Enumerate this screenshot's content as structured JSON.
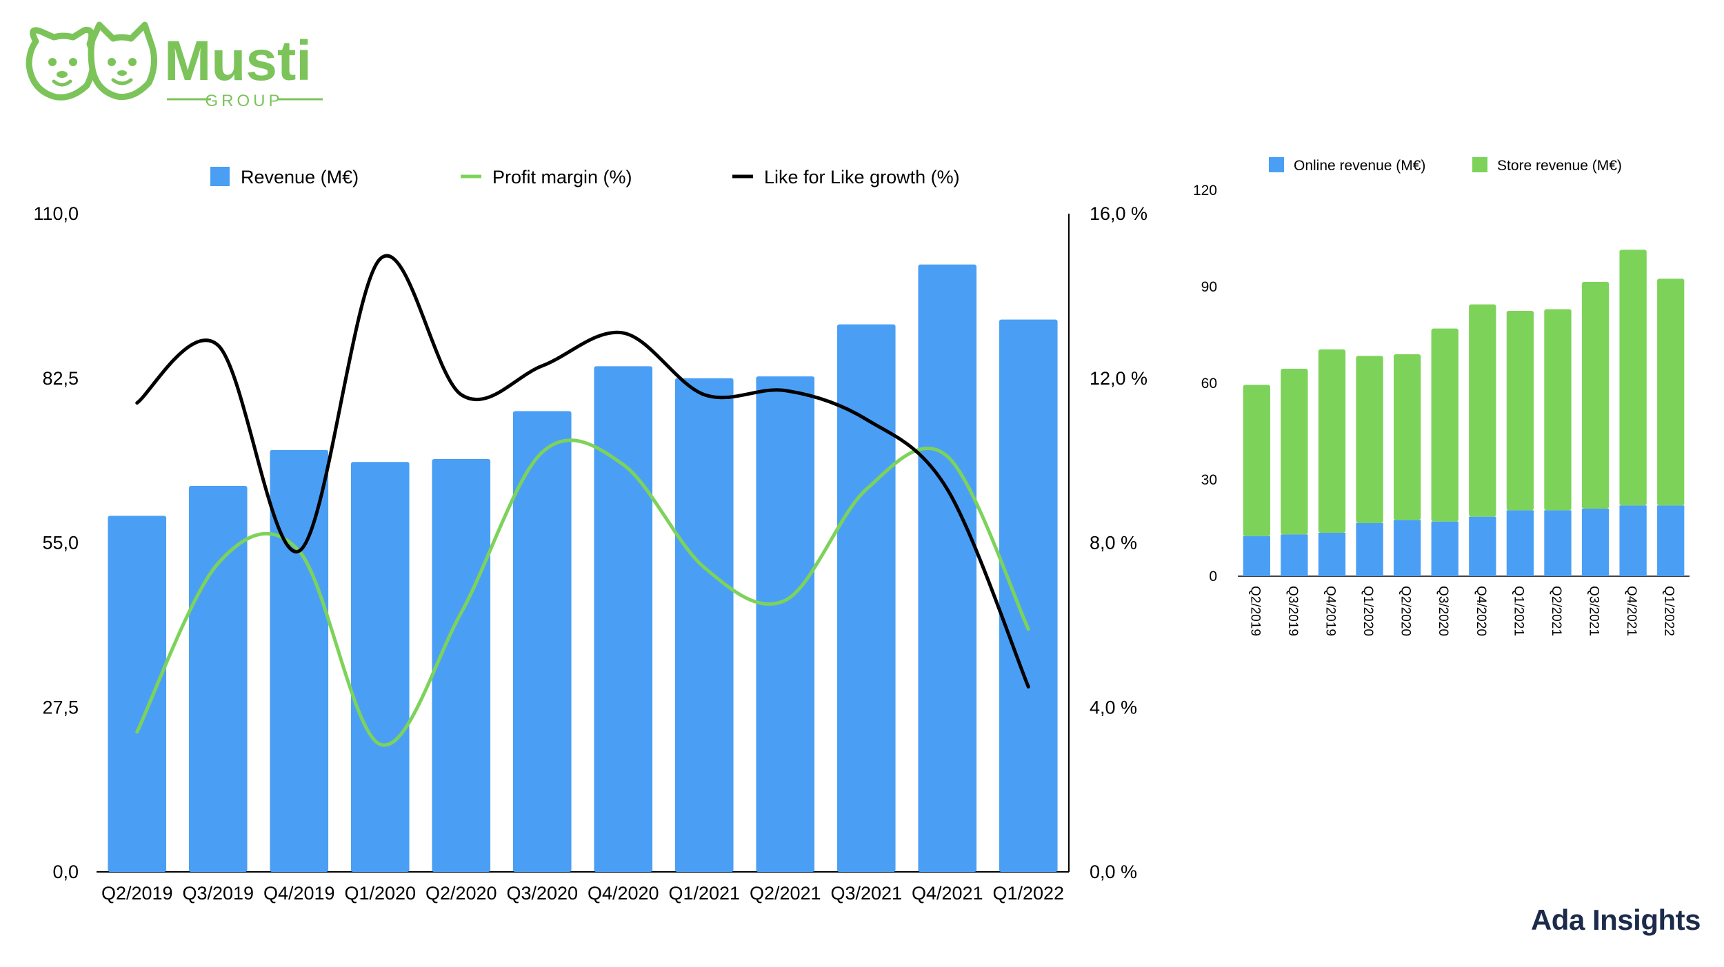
{
  "brand": {
    "logo_text": "Musti",
    "logo_subtext": "GROUP",
    "footer": "Ada Insights",
    "green": "#7cc45a"
  },
  "chart_data": [
    {
      "type": "bar",
      "categories": [
        "Q2/2019",
        "Q3/2019",
        "Q4/2019",
        "Q1/2020",
        "Q2/2020",
        "Q3/2020",
        "Q4/2020",
        "Q1/2021",
        "Q2/2021",
        "Q3/2021",
        "Q4/2021",
        "Q1/2022"
      ],
      "series": [
        {
          "name": "Revenue (M€)",
          "type": "bar",
          "axis": "left",
          "color": "#4a9ff5",
          "values": [
            59.5,
            64.5,
            70.5,
            68.5,
            69.0,
            77.0,
            84.5,
            82.5,
            82.8,
            91.5,
            101.5,
            92.3
          ]
        },
        {
          "name": "Profit margin (%)",
          "type": "line",
          "axis": "right",
          "color": "#7dd35a",
          "values": [
            3.4,
            7.5,
            7.8,
            3.1,
            6.3,
            10.2,
            9.9,
            7.4,
            6.6,
            9.3,
            10.1,
            5.9
          ]
        },
        {
          "name": "Like for Like growth (%)",
          "type": "line",
          "axis": "right",
          "color": "#000000",
          "values": [
            11.4,
            12.8,
            7.8,
            14.9,
            11.6,
            12.3,
            13.1,
            11.6,
            11.7,
            11.0,
            9.3,
            4.5
          ]
        }
      ],
      "left_axis": {
        "ticks": [
          "0,0",
          "27,5",
          "55,0",
          "82,5",
          "110,0"
        ],
        "ylim": [
          0,
          110
        ]
      },
      "right_axis": {
        "ticks": [
          "0,0 %",
          "4,0 %",
          "8,0 %",
          "12,0 %",
          "16,0 %"
        ],
        "ylim": [
          0,
          16
        ]
      },
      "legend": "top",
      "grid": false
    },
    {
      "type": "bar",
      "stacked": true,
      "categories": [
        "Q2/2019",
        "Q3/2019",
        "Q4/2019",
        "Q1/2020",
        "Q2/2020",
        "Q3/2020",
        "Q4/2020",
        "Q1/2021",
        "Q2/2021",
        "Q3/2021",
        "Q4/2021",
        "Q1/2022"
      ],
      "series": [
        {
          "name": "Online revenue (M€)",
          "color": "#4a9ff5",
          "values": [
            12.5,
            13.0,
            13.5,
            16.5,
            17.5,
            17.0,
            18.5,
            20.5,
            20.5,
            21.0,
            22.0,
            22.0
          ]
        },
        {
          "name": "Store revenue (M€)",
          "color": "#7dd35a",
          "values": [
            47.0,
            51.5,
            57.0,
            52.0,
            51.5,
            60.0,
            66.0,
            62.0,
            62.5,
            70.5,
            79.5,
            70.5
          ]
        }
      ],
      "axis": {
        "ticks": [
          "0",
          "30",
          "60",
          "90",
          "120"
        ],
        "ylim": [
          0,
          120
        ]
      },
      "legend": "top",
      "grid": false
    }
  ]
}
